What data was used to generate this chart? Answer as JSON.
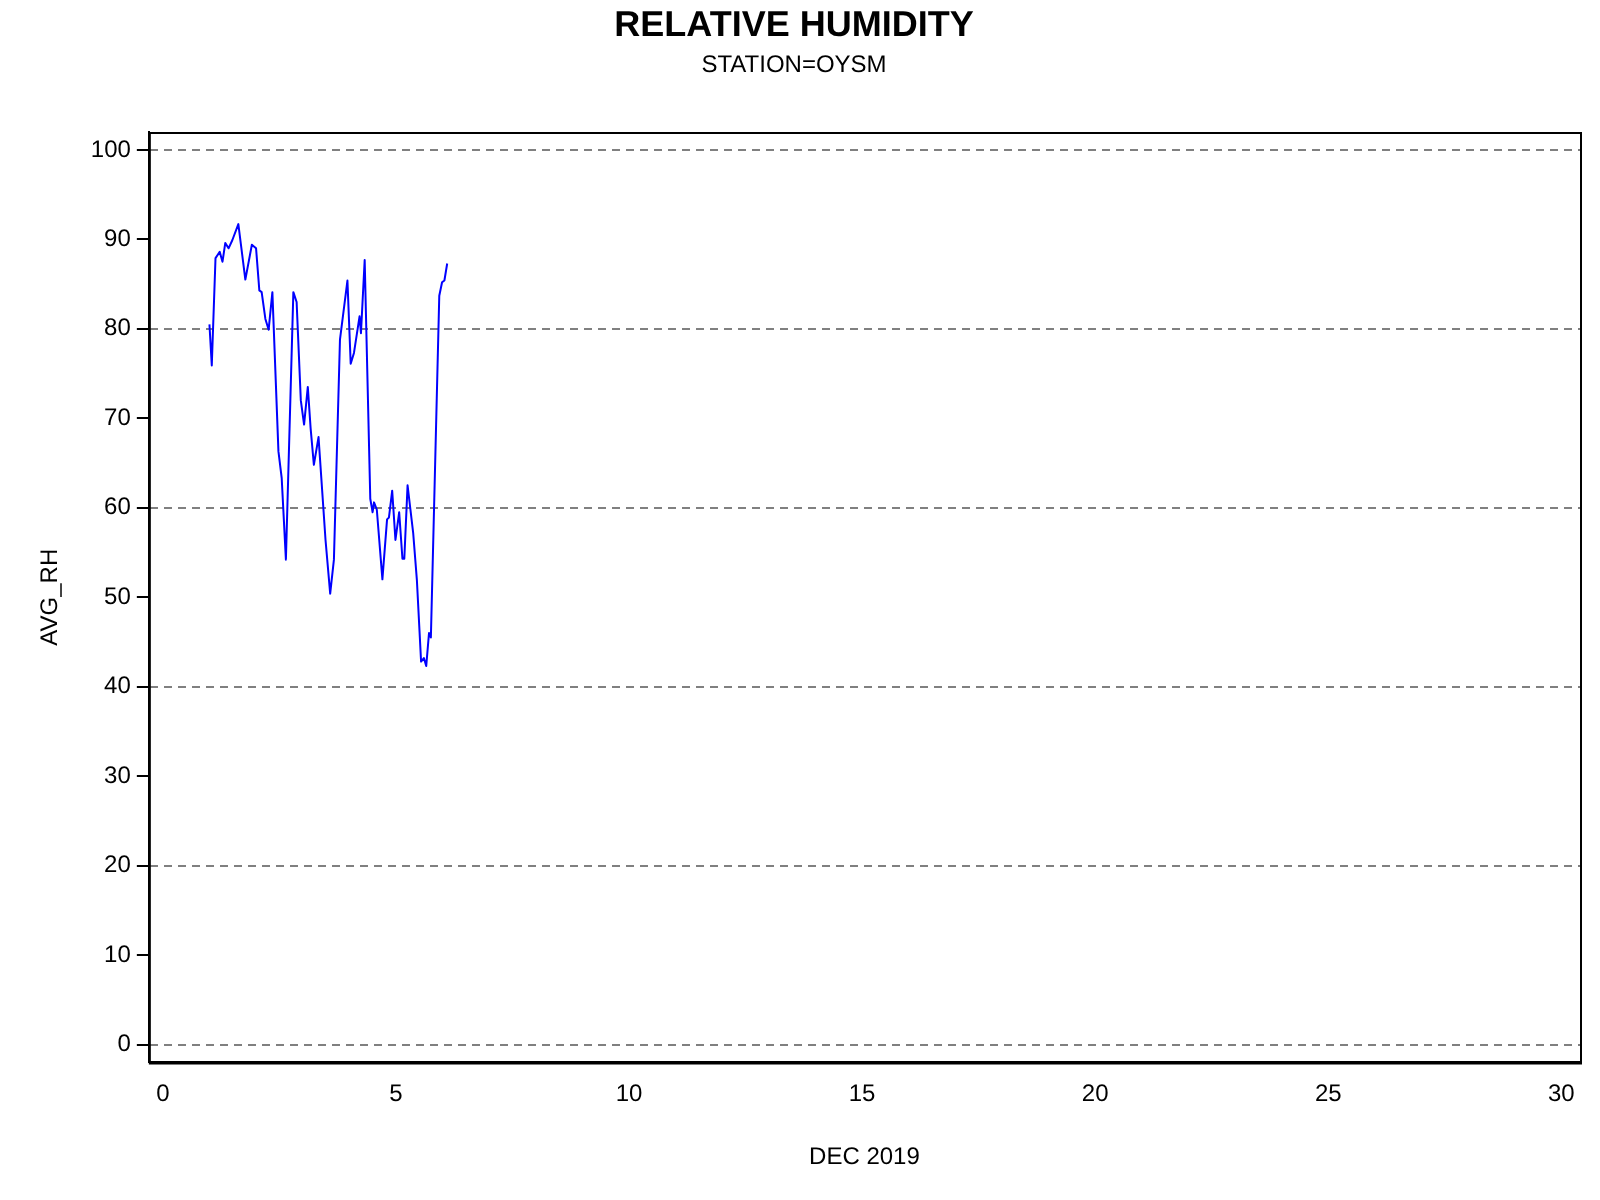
{
  "chart_data": {
    "type": "line",
    "title": "RELATIVE HUMIDITY",
    "subtitle": "STATION=OYSM",
    "xlabel": "DEC 2019",
    "ylabel": "AVG_RH",
    "x": [
      1.0,
      1.05,
      1.13,
      1.22,
      1.28,
      1.34,
      1.41,
      1.49,
      1.62,
      1.77,
      1.91,
      2.0,
      2.07,
      2.12,
      2.2,
      2.27,
      2.35,
      2.48,
      2.55,
      2.64,
      2.8,
      2.87,
      2.96,
      3.03,
      3.11,
      3.17,
      3.24,
      3.34,
      3.49,
      3.59,
      3.67,
      3.8,
      3.96,
      4.03,
      4.1,
      4.22,
      4.25,
      4.33,
      4.45,
      4.5,
      4.53,
      4.59,
      4.71,
      4.81,
      4.85,
      4.92,
      4.99,
      5.07,
      5.14,
      5.18,
      5.25,
      5.37,
      5.45,
      5.54,
      5.6,
      5.65,
      5.71,
      5.75,
      5.93,
      5.99,
      6.04,
      6.1
    ],
    "series": [
      {
        "color": "#0000ff",
        "values": [
          80.5,
          75.9,
          87.9,
          88.6,
          87.5,
          89.6,
          89.0,
          89.9,
          91.7,
          85.5,
          89.4,
          89.0,
          84.3,
          84.1,
          81.1,
          79.9,
          84.1,
          66.3,
          63.3,
          54.2,
          84.1,
          83.0,
          72.0,
          69.3,
          73.5,
          68.9,
          64.8,
          67.9,
          56.4,
          50.4,
          54.2,
          78.8,
          85.4,
          76.1,
          77.3,
          81.4,
          79.5,
          87.7,
          61.0,
          59.5,
          60.6,
          59.8,
          52.0,
          58.7,
          58.9,
          61.9,
          56.4,
          59.5,
          54.3,
          54.3,
          62.5,
          57.2,
          51.9,
          42.8,
          43.2,
          42.3,
          46.0,
          45.5,
          83.7,
          85.2,
          85.4,
          87.3
        ]
      }
    ],
    "xlim": [
      -0.3,
      30.4
    ],
    "xticks": [
      0,
      5,
      10,
      15,
      20,
      25,
      30
    ],
    "ylim": [
      -2,
      102
    ],
    "yticks": [
      0,
      10,
      20,
      30,
      40,
      50,
      60,
      70,
      80,
      90,
      100
    ],
    "grid": "y",
    "legend": false,
    "marker": "none",
    "line_style": "solid"
  }
}
